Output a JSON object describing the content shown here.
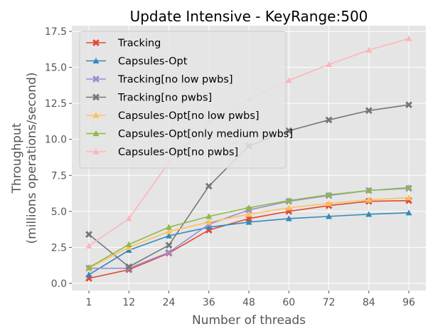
{
  "chart_data": {
    "type": "line",
    "title": "Update Intensive - KeyRange:500",
    "xlabel": "Number of threads",
    "ylabel_line1": "Throughput",
    "ylabel_line2": "(millions operations/second)",
    "x": [
      1,
      12,
      24,
      36,
      48,
      60,
      72,
      84,
      96
    ],
    "xticks": [
      "1",
      "12",
      "24",
      "36",
      "48",
      "60",
      "72",
      "84",
      "96"
    ],
    "yticks": [
      "0.0",
      "2.5",
      "5.0",
      "7.5",
      "10.0",
      "12.5",
      "15.0",
      "17.5"
    ],
    "ytick_values": [
      0,
      2.5,
      5,
      7.5,
      10,
      12.5,
      15,
      17.5
    ],
    "ylim": [
      -0.5,
      17.9
    ],
    "grid": true,
    "legend_position": "top-left",
    "series": [
      {
        "name": "Tracking",
        "color": "#E24A33",
        "marker": "x",
        "values": [
          0.35,
          0.95,
          2.1,
          3.7,
          4.5,
          5.0,
          5.4,
          5.7,
          5.75
        ]
      },
      {
        "name": "Capsules-Opt",
        "color": "#348ABD",
        "marker": "triangle",
        "values": [
          0.6,
          2.3,
          3.3,
          3.9,
          4.25,
          4.5,
          4.65,
          4.8,
          4.9
        ]
      },
      {
        "name": "Tracking[no low pwbs]",
        "color": "#988ED5",
        "marker": "x",
        "values": [
          1.05,
          1.05,
          2.15,
          4.1,
          5.1,
          5.7,
          6.1,
          6.45,
          6.6
        ]
      },
      {
        "name": "Tracking[no pwbs]",
        "color": "#777777",
        "marker": "x",
        "values": [
          3.4,
          1.15,
          2.65,
          6.75,
          9.55,
          10.6,
          11.35,
          12.0,
          12.4
        ]
      },
      {
        "name": "Capsules-Opt[no low pwbs]",
        "color": "#FBC15E",
        "marker": "triangle",
        "values": [
          1.05,
          2.5,
          3.6,
          4.25,
          4.8,
          5.25,
          5.55,
          5.8,
          5.95
        ]
      },
      {
        "name": "Capsules-Opt[only medium pwbs]",
        "color": "#8EBA42",
        "marker": "triangle",
        "values": [
          1.1,
          2.7,
          3.9,
          4.65,
          5.25,
          5.75,
          6.15,
          6.45,
          6.65
        ]
      },
      {
        "name": "Capsules-Opt[no pwbs]",
        "color": "#FFB5B8",
        "marker": "triangle",
        "values": [
          2.6,
          4.5,
          8.4,
          11.2,
          12.8,
          14.1,
          15.2,
          16.2,
          17.0
        ]
      }
    ]
  }
}
